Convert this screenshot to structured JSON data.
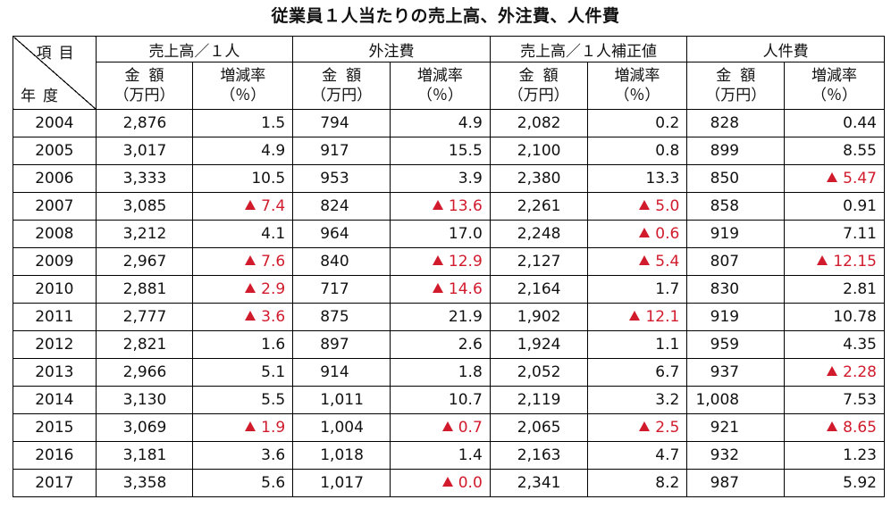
{
  "title": "従業員１人当たりの売上高、外注費、人件費",
  "corner": {
    "top_label": "項目",
    "bottom_label": "年度"
  },
  "groups": [
    "売上高／１人",
    "外注費",
    "売上高／１人補正値",
    "人件費"
  ],
  "sub_headers": {
    "amount_line1": "金額",
    "amount_line2": "（万円）",
    "rate_line1": "増減率",
    "rate_line2": "（％）"
  },
  "negative_marker": "▲",
  "rows": [
    {
      "year": "2004",
      "c": [
        [
          "2,876",
          false
        ],
        [
          "1.5",
          false
        ],
        [
          "794",
          false
        ],
        [
          "4.9",
          false
        ],
        [
          "2,082",
          false
        ],
        [
          "0.2",
          false
        ],
        [
          "828",
          false
        ],
        [
          "0.44",
          false
        ]
      ]
    },
    {
      "year": "2005",
      "c": [
        [
          "3,017",
          false
        ],
        [
          "4.9",
          false
        ],
        [
          "917",
          false
        ],
        [
          "15.5",
          false
        ],
        [
          "2,100",
          false
        ],
        [
          "0.8",
          false
        ],
        [
          "899",
          false
        ],
        [
          "8.55",
          false
        ]
      ]
    },
    {
      "year": "2006",
      "c": [
        [
          "3,333",
          false
        ],
        [
          "10.5",
          false
        ],
        [
          "953",
          false
        ],
        [
          "3.9",
          false
        ],
        [
          "2,380",
          false
        ],
        [
          "13.3",
          false
        ],
        [
          "850",
          false
        ],
        [
          "5.47",
          true
        ]
      ]
    },
    {
      "year": "2007",
      "c": [
        [
          "3,085",
          false
        ],
        [
          "7.4",
          true
        ],
        [
          "824",
          false
        ],
        [
          "13.6",
          true
        ],
        [
          "2,261",
          false
        ],
        [
          "5.0",
          true
        ],
        [
          "858",
          false
        ],
        [
          "0.91",
          false
        ]
      ]
    },
    {
      "year": "2008",
      "c": [
        [
          "3,212",
          false
        ],
        [
          "4.1",
          false
        ],
        [
          "964",
          false
        ],
        [
          "17.0",
          false
        ],
        [
          "2,248",
          false
        ],
        [
          "0.6",
          true
        ],
        [
          "919",
          false
        ],
        [
          "7.11",
          false
        ]
      ]
    },
    {
      "year": "2009",
      "c": [
        [
          "2,967",
          false
        ],
        [
          "7.6",
          true
        ],
        [
          "840",
          false
        ],
        [
          "12.9",
          true
        ],
        [
          "2,127",
          false
        ],
        [
          "5.4",
          true
        ],
        [
          "807",
          false
        ],
        [
          "12.15",
          true
        ]
      ]
    },
    {
      "year": "2010",
      "c": [
        [
          "2,881",
          false
        ],
        [
          "2.9",
          true
        ],
        [
          "717",
          false
        ],
        [
          "14.6",
          true
        ],
        [
          "2,164",
          false
        ],
        [
          "1.7",
          false
        ],
        [
          "830",
          false
        ],
        [
          "2.81",
          false
        ]
      ]
    },
    {
      "year": "2011",
      "c": [
        [
          "2,777",
          false
        ],
        [
          "3.6",
          true
        ],
        [
          "875",
          false
        ],
        [
          "21.9",
          false
        ],
        [
          "1,902",
          false
        ],
        [
          "12.1",
          true
        ],
        [
          "919",
          false
        ],
        [
          "10.78",
          false
        ]
      ]
    },
    {
      "year": "2012",
      "c": [
        [
          "2,821",
          false
        ],
        [
          "1.6",
          false
        ],
        [
          "897",
          false
        ],
        [
          "2.6",
          false
        ],
        [
          "1,924",
          false
        ],
        [
          "1.1",
          false
        ],
        [
          "959",
          false
        ],
        [
          "4.35",
          false
        ]
      ]
    },
    {
      "year": "2013",
      "c": [
        [
          "2,966",
          false
        ],
        [
          "5.1",
          false
        ],
        [
          "914",
          false
        ],
        [
          "1.8",
          false
        ],
        [
          "2,052",
          false
        ],
        [
          "6.7",
          false
        ],
        [
          "937",
          false
        ],
        [
          "2.28",
          true
        ]
      ]
    },
    {
      "year": "2014",
      "c": [
        [
          "3,130",
          false
        ],
        [
          "5.5",
          false
        ],
        [
          "1,011",
          false
        ],
        [
          "10.7",
          false
        ],
        [
          "2,119",
          false
        ],
        [
          "3.2",
          false
        ],
        [
          "1,008",
          false
        ],
        [
          "7.53",
          false
        ]
      ]
    },
    {
      "year": "2015",
      "c": [
        [
          "3,069",
          false
        ],
        [
          "1.9",
          true
        ],
        [
          "1,004",
          false
        ],
        [
          "0.7",
          true
        ],
        [
          "2,065",
          false
        ],
        [
          "2.5",
          true
        ],
        [
          "921",
          false
        ],
        [
          "8.65",
          true
        ]
      ]
    },
    {
      "year": "2016",
      "c": [
        [
          "3,181",
          false
        ],
        [
          "3.6",
          false
        ],
        [
          "1,018",
          false
        ],
        [
          "1.4",
          false
        ],
        [
          "2,163",
          false
        ],
        [
          "4.7",
          false
        ],
        [
          "932",
          false
        ],
        [
          "1.23",
          false
        ]
      ]
    },
    {
      "year": "2017",
      "c": [
        [
          "3,358",
          false
        ],
        [
          "5.6",
          false
        ],
        [
          "1,017",
          false
        ],
        [
          "0.0",
          true
        ],
        [
          "2,341",
          false
        ],
        [
          "8.2",
          false
        ],
        [
          "987",
          false
        ],
        [
          "5.92",
          false
        ]
      ]
    }
  ],
  "colors": {
    "negative": "#d11b2c",
    "border": "#000000",
    "text": "#111111"
  }
}
